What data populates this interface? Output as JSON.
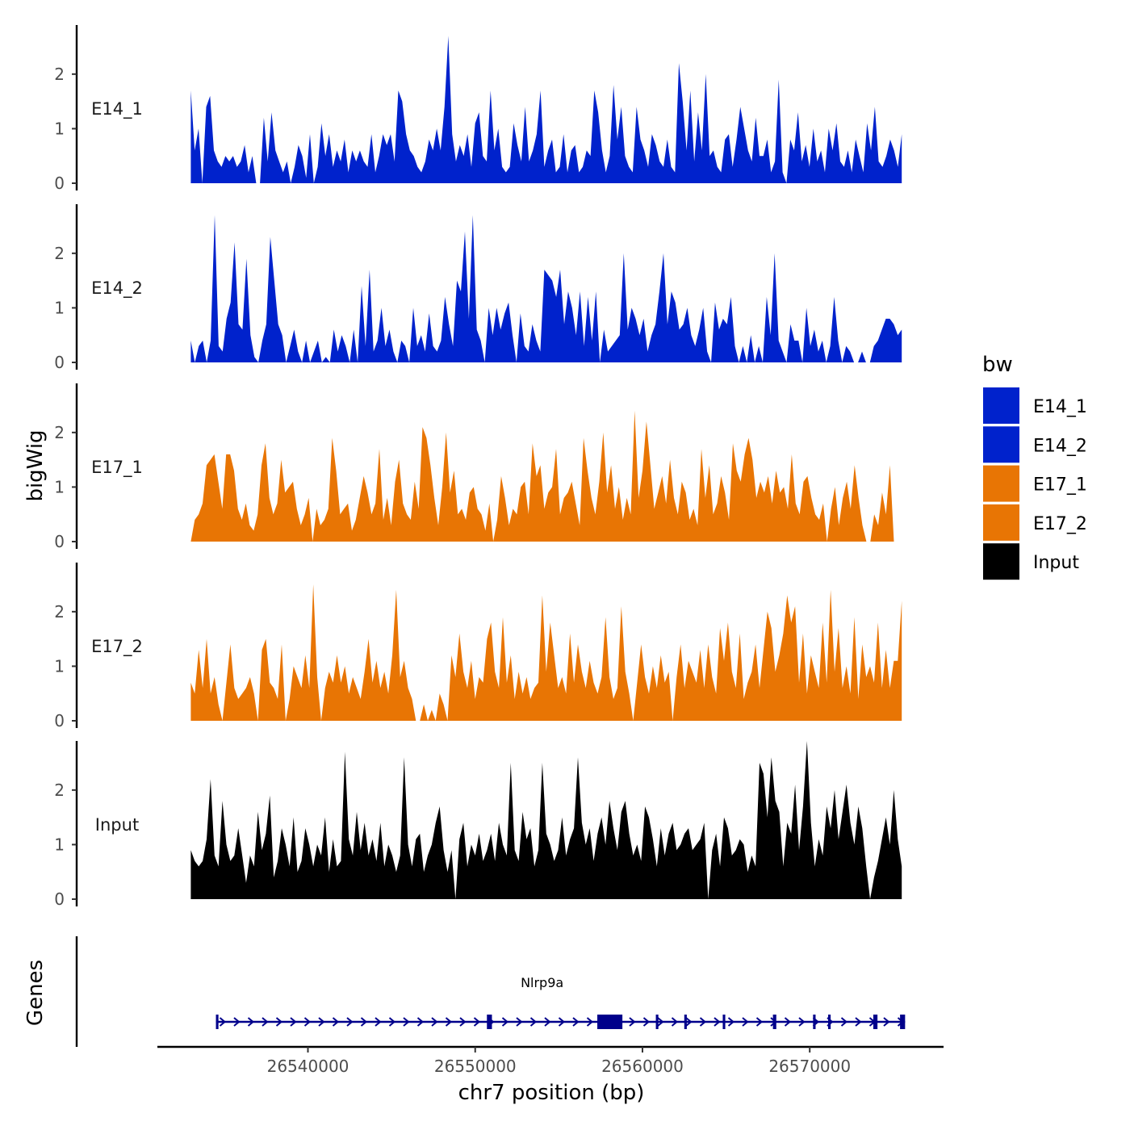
{
  "chart_data": {
    "type": "area",
    "chromosome_label": "chr7 position (bp)",
    "ylabel": "bigWig",
    "genes_label": "Genes",
    "xlim": [
      26531000,
      26578000
    ],
    "x_ticks": [
      26540000,
      26550000,
      26560000,
      26570000
    ],
    "x_tick_labels": [
      "26540000",
      "26550000",
      "26560000",
      "26570000"
    ],
    "ylim": [
      0,
      2.9
    ],
    "y_ticks": [
      0,
      1,
      2
    ],
    "y_tick_labels": [
      "0",
      "1",
      "2"
    ],
    "legend": {
      "title": "bw",
      "position": "right",
      "entries": [
        {
          "label": "E14_1",
          "color": "#0022CC"
        },
        {
          "label": "E14_2",
          "color": "#0022CC"
        },
        {
          "label": "E17_1",
          "color": "#E87504"
        },
        {
          "label": "E17_2",
          "color": "#E87504"
        },
        {
          "label": "Input",
          "color": "#000000"
        }
      ]
    },
    "series": [
      {
        "name": "E14_1",
        "color": "#0022CC",
        "x_start": 26533000,
        "x_end": 26575500,
        "values": [
          1.7,
          0.6,
          1.0,
          0.0,
          1.4,
          1.6,
          0.6,
          0.4,
          0.3,
          0.5,
          0.4,
          0.5,
          0.3,
          0.4,
          0.7,
          0.2,
          0.5,
          0.0,
          0.0,
          1.2,
          0.4,
          1.3,
          0.6,
          0.4,
          0.2,
          0.4,
          0.0,
          0.3,
          0.7,
          0.5,
          0.1,
          0.9,
          0.0,
          0.3,
          1.1,
          0.5,
          0.9,
          0.3,
          0.6,
          0.4,
          0.8,
          0.2,
          0.6,
          0.4,
          0.6,
          0.4,
          0.3,
          0.9,
          0.2,
          0.5,
          0.9,
          0.7,
          0.9,
          0.4,
          1.7,
          1.5,
          0.9,
          0.6,
          0.5,
          0.3,
          0.2,
          0.4,
          0.8,
          0.6,
          1.0,
          0.6,
          1.4,
          2.7,
          0.9,
          0.4,
          0.7,
          0.5,
          0.9,
          0.3,
          1.1,
          1.3,
          0.5,
          0.4,
          1.7,
          0.6,
          1.0,
          0.3,
          0.2,
          0.3,
          1.1,
          0.7,
          0.4,
          1.4,
          0.4,
          0.6,
          0.9,
          1.7,
          0.3,
          0.6,
          0.8,
          0.2,
          0.3,
          0.9,
          0.2,
          0.6,
          0.7,
          0.2,
          0.3,
          0.6,
          0.5,
          1.7,
          1.3,
          0.6,
          0.2,
          0.5,
          1.8,
          0.8,
          1.4,
          0.5,
          0.3,
          0.2,
          1.4,
          0.8,
          0.6,
          0.3,
          0.9,
          0.7,
          0.4,
          0.3,
          0.8,
          0.3,
          0.2,
          2.2,
          1.5,
          0.6,
          1.7,
          0.4,
          1.3,
          0.6,
          2.0,
          0.5,
          0.6,
          0.3,
          0.2,
          0.8,
          0.9,
          0.3,
          0.8,
          1.4,
          1.0,
          0.6,
          0.4,
          1.2,
          0.5,
          0.5,
          0.8,
          0.2,
          0.4,
          1.9,
          0.2,
          0.0,
          0.8,
          0.6,
          1.3,
          0.4,
          0.7,
          0.3,
          1.0,
          0.4,
          0.6,
          0.2,
          1.0,
          0.6,
          1.1,
          0.4,
          0.3,
          0.6,
          0.2,
          0.8,
          0.5,
          0.2,
          1.1,
          0.6,
          1.4,
          0.4,
          0.3,
          0.5,
          0.8,
          0.6,
          0.3,
          0.9
        ]
      },
      {
        "name": "E14_2",
        "color": "#0022CC",
        "x_start": 26533000,
        "x_end": 26575500,
        "values": [
          0.4,
          0.0,
          0.3,
          0.4,
          0.0,
          0.4,
          2.7,
          0.3,
          0.2,
          0.8,
          1.1,
          2.2,
          0.7,
          0.6,
          1.9,
          0.5,
          0.1,
          0.0,
          0.4,
          0.7,
          2.3,
          1.5,
          0.7,
          0.5,
          0.0,
          0.3,
          0.6,
          0.2,
          0.0,
          0.4,
          0.0,
          0.2,
          0.4,
          0.0,
          0.1,
          0.0,
          0.6,
          0.2,
          0.5,
          0.3,
          0.0,
          0.6,
          0.0,
          1.4,
          0.3,
          1.7,
          0.2,
          0.4,
          1.0,
          0.3,
          0.6,
          0.2,
          0.0,
          0.4,
          0.3,
          0.0,
          1.0,
          0.3,
          0.5,
          0.2,
          0.9,
          0.3,
          0.2,
          0.4,
          1.2,
          0.7,
          0.3,
          1.5,
          1.3,
          2.4,
          0.8,
          2.7,
          0.6,
          0.4,
          0.0,
          1.0,
          0.5,
          1.0,
          0.6,
          0.9,
          1.1,
          0.5,
          0.0,
          0.9,
          0.3,
          0.2,
          0.7,
          0.4,
          0.2,
          1.7,
          1.6,
          1.5,
          1.2,
          1.7,
          0.7,
          1.3,
          1.0,
          0.5,
          1.3,
          0.3,
          1.2,
          0.4,
          1.3,
          0.0,
          0.6,
          0.2,
          0.3,
          0.4,
          0.5,
          2.0,
          0.6,
          1.0,
          0.8,
          0.5,
          0.8,
          0.2,
          0.5,
          0.7,
          1.3,
          2.0,
          0.7,
          1.3,
          1.1,
          0.6,
          0.7,
          1.0,
          0.5,
          0.3,
          0.6,
          1.0,
          0.2,
          0.0,
          1.1,
          0.6,
          0.8,
          0.7,
          1.2,
          0.3,
          0.0,
          0.3,
          0.0,
          0.5,
          0.0,
          0.3,
          0.0,
          1.2,
          0.5,
          2.0,
          0.4,
          0.2,
          0.0,
          0.7,
          0.4,
          0.4,
          0.0,
          1.0,
          0.3,
          0.6,
          0.2,
          0.4,
          0.0,
          0.3,
          1.2,
          0.4,
          0.0,
          0.3,
          0.2,
          0.0,
          0.0,
          0.2,
          0.0,
          0.0,
          0.3,
          0.4,
          0.6,
          0.8,
          0.8,
          0.7,
          0.5,
          0.6
        ]
      },
      {
        "name": "E17_1",
        "color": "#E87504",
        "x_start": 26533000,
        "x_end": 26575500,
        "values": [
          0.0,
          0.4,
          0.5,
          0.7,
          1.4,
          1.5,
          1.6,
          1.1,
          0.6,
          1.6,
          1.6,
          1.3,
          0.6,
          0.4,
          0.7,
          0.3,
          0.2,
          0.5,
          1.4,
          1.8,
          0.8,
          0.5,
          0.7,
          1.5,
          0.9,
          1.0,
          1.1,
          0.6,
          0.3,
          0.5,
          0.8,
          0.0,
          0.6,
          0.3,
          0.4,
          0.6,
          1.9,
          1.3,
          0.5,
          0.6,
          0.7,
          0.2,
          0.4,
          0.8,
          1.2,
          0.9,
          0.5,
          0.7,
          1.7,
          0.4,
          0.8,
          0.3,
          1.1,
          1.5,
          0.7,
          0.5,
          0.4,
          1.1,
          0.6,
          2.1,
          1.9,
          1.4,
          0.8,
          0.3,
          1.0,
          2.0,
          0.9,
          1.3,
          0.5,
          0.6,
          0.4,
          0.9,
          1.0,
          0.6,
          0.5,
          0.2,
          0.7,
          0.0,
          0.4,
          1.2,
          0.8,
          0.3,
          0.6,
          0.5,
          1.0,
          1.1,
          0.5,
          1.8,
          1.2,
          1.4,
          0.6,
          0.9,
          1.0,
          1.7,
          0.5,
          0.8,
          0.9,
          1.1,
          0.7,
          0.3,
          1.9,
          1.3,
          0.8,
          0.5,
          1.1,
          2.0,
          0.9,
          1.4,
          0.6,
          1.0,
          0.4,
          0.8,
          0.5,
          2.4,
          0.8,
          1.3,
          2.2,
          1.4,
          0.6,
          0.9,
          1.2,
          0.7,
          1.5,
          0.8,
          0.5,
          1.1,
          0.9,
          0.4,
          0.6,
          0.3,
          1.7,
          0.8,
          1.4,
          0.5,
          0.7,
          1.2,
          0.9,
          0.4,
          1.8,
          1.3,
          1.1,
          1.6,
          1.9,
          1.5,
          0.8,
          1.1,
          0.9,
          1.2,
          0.7,
          1.3,
          0.9,
          1.0,
          0.6,
          1.6,
          0.7,
          0.5,
          1.1,
          1.2,
          0.8,
          0.5,
          0.4,
          0.7,
          0.0,
          0.6,
          1.0,
          0.3,
          0.8,
          1.1,
          0.6,
          1.4,
          0.8,
          0.3,
          0.0,
          0.0,
          0.5,
          0.3,
          0.9,
          0.5,
          1.4,
          0.0,
          0.0,
          0.0
        ]
      },
      {
        "name": "E17_2",
        "color": "#E87504",
        "x_start": 26533000,
        "x_end": 26575500,
        "values": [
          0.7,
          0.5,
          1.3,
          0.6,
          1.5,
          0.5,
          0.8,
          0.3,
          0.0,
          0.7,
          1.4,
          0.6,
          0.4,
          0.5,
          0.6,
          0.8,
          0.5,
          0.0,
          1.3,
          1.5,
          0.7,
          0.6,
          0.4,
          1.4,
          0.0,
          0.4,
          1.0,
          0.8,
          0.6,
          1.2,
          0.6,
          2.5,
          0.8,
          0.0,
          0.6,
          0.9,
          0.7,
          1.2,
          0.7,
          1.0,
          0.5,
          0.8,
          0.6,
          0.4,
          0.9,
          1.5,
          0.7,
          1.1,
          0.6,
          0.9,
          0.5,
          1.2,
          2.4,
          0.8,
          1.1,
          0.6,
          0.4,
          0.0,
          0.0,
          0.3,
          0.0,
          0.2,
          0.0,
          0.5,
          0.3,
          0.0,
          1.2,
          0.8,
          1.6,
          0.9,
          0.6,
          1.1,
          0.4,
          0.8,
          0.7,
          1.5,
          1.8,
          0.9,
          0.6,
          1.9,
          0.7,
          1.2,
          0.4,
          0.9,
          0.5,
          0.8,
          0.4,
          0.6,
          0.7,
          2.3,
          0.9,
          1.8,
          1.2,
          0.6,
          0.8,
          0.5,
          1.6,
          0.7,
          1.4,
          0.9,
          0.6,
          1.1,
          0.7,
          0.5,
          0.8,
          1.9,
          0.8,
          0.4,
          0.6,
          2.1,
          0.9,
          0.5,
          0.0,
          0.7,
          1.4,
          0.8,
          0.5,
          1.0,
          0.6,
          1.2,
          0.7,
          0.9,
          0.0,
          0.8,
          1.4,
          0.6,
          1.1,
          0.9,
          0.7,
          1.3,
          0.6,
          1.4,
          0.8,
          0.5,
          1.7,
          1.1,
          1.8,
          0.9,
          0.6,
          1.6,
          0.4,
          0.7,
          0.9,
          1.4,
          0.6,
          1.3,
          2.0,
          1.7,
          0.9,
          1.2,
          1.6,
          2.3,
          1.8,
          2.1,
          0.7,
          1.6,
          0.5,
          1.2,
          0.9,
          0.6,
          1.8,
          0.7,
          2.4,
          0.9,
          1.7,
          0.6,
          1.0,
          0.5,
          1.9,
          0.4,
          1.4,
          0.8,
          1.0,
          0.7,
          1.8,
          0.6,
          1.3,
          0.6,
          1.1,
          1.1,
          2.2
        ]
      },
      {
        "name": "Input",
        "color": "#000000",
        "x_start": 26533000,
        "x_end": 26575500,
        "values": [
          0.9,
          0.7,
          0.6,
          0.7,
          1.1,
          2.2,
          0.8,
          0.6,
          1.8,
          1.0,
          0.7,
          0.8,
          1.3,
          0.8,
          0.3,
          0.8,
          0.6,
          1.6,
          0.9,
          1.2,
          1.9,
          0.4,
          0.7,
          1.3,
          1.0,
          0.6,
          1.5,
          0.5,
          0.7,
          1.3,
          1.0,
          0.6,
          1.0,
          0.8,
          1.5,
          0.5,
          1.1,
          0.6,
          0.7,
          2.7,
          1.1,
          0.8,
          1.6,
          0.9,
          1.4,
          0.8,
          1.1,
          0.7,
          1.4,
          0.6,
          1.0,
          0.8,
          0.5,
          0.8,
          2.6,
          1.0,
          0.6,
          1.1,
          1.2,
          0.5,
          0.8,
          1.0,
          1.4,
          1.7,
          0.9,
          0.5,
          0.9,
          0.0,
          1.1,
          1.4,
          0.6,
          1.0,
          0.8,
          1.2,
          0.7,
          0.9,
          1.2,
          0.7,
          1.4,
          1.0,
          0.8,
          2.5,
          0.9,
          0.7,
          1.6,
          1.1,
          1.3,
          0.6,
          0.9,
          2.5,
          1.2,
          1.0,
          0.7,
          0.9,
          1.5,
          0.8,
          1.1,
          1.3,
          2.6,
          1.4,
          1.0,
          1.3,
          0.7,
          1.2,
          1.5,
          1.0,
          1.8,
          1.3,
          0.9,
          1.6,
          1.8,
          1.2,
          0.8,
          1.0,
          0.7,
          1.7,
          1.5,
          1.1,
          0.6,
          1.3,
          0.8,
          1.2,
          1.4,
          0.9,
          1.0,
          1.2,
          1.3,
          0.9,
          1.0,
          1.1,
          1.4,
          0.0,
          0.9,
          1.2,
          0.6,
          1.5,
          1.3,
          0.8,
          0.9,
          1.1,
          1.0,
          0.5,
          0.8,
          0.6,
          2.5,
          2.3,
          1.5,
          2.6,
          1.8,
          1.6,
          0.6,
          1.4,
          1.2,
          2.1,
          0.9,
          1.7,
          2.9,
          1.4,
          0.6,
          1.1,
          0.8,
          1.7,
          1.3,
          2.0,
          1.1,
          1.6,
          2.1,
          1.4,
          1.0,
          1.7,
          1.3,
          0.6,
          0.0,
          0.4,
          0.7,
          1.1,
          1.5,
          1.0,
          2.0,
          1.1,
          0.6
        ]
      }
    ],
    "genes": [
      {
        "name": "Nlrp9a",
        "strand": "+",
        "color": "#00008B",
        "start": 26534500,
        "end": 26575700,
        "exons": [
          {
            "start": 26534500,
            "end": 26534650
          },
          {
            "start": 26550700,
            "end": 26551000
          },
          {
            "start": 26557300,
            "end": 26558800
          },
          {
            "start": 26560800,
            "end": 26560950
          },
          {
            "start": 26562500,
            "end": 26562650
          },
          {
            "start": 26564800,
            "end": 26564950
          },
          {
            "start": 26567800,
            "end": 26568000
          },
          {
            "start": 26570200,
            "end": 26570350
          },
          {
            "start": 26571100,
            "end": 26571250
          },
          {
            "start": 26573800,
            "end": 26574050
          },
          {
            "start": 26575400,
            "end": 26575700
          }
        ]
      }
    ]
  }
}
